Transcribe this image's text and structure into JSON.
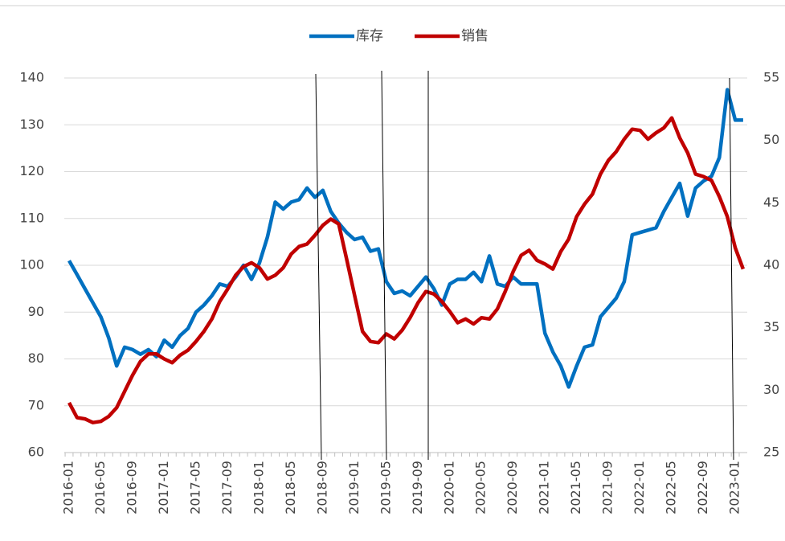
{
  "chart_data": {
    "type": "line",
    "categories": [
      "2016-01",
      null,
      null,
      null,
      "2016-05",
      null,
      null,
      null,
      "2016-09",
      null,
      null,
      null,
      "2017-01",
      null,
      null,
      null,
      "2017-05",
      null,
      null,
      null,
      "2017-09",
      null,
      null,
      null,
      "2018-01",
      null,
      null,
      null,
      "2018-05",
      null,
      null,
      null,
      "2018-09",
      null,
      null,
      null,
      "2019-01",
      null,
      null,
      null,
      "2019-05",
      null,
      null,
      null,
      "2019-09",
      null,
      null,
      null,
      "2020-01",
      null,
      null,
      null,
      "2020-05",
      null,
      null,
      null,
      "2020-09",
      null,
      null,
      null,
      "2021-01",
      null,
      null,
      null,
      "2021-05",
      null,
      null,
      null,
      "2021-09",
      null,
      null,
      null,
      "2022-01",
      null,
      null,
      null,
      "2022-05",
      null,
      null,
      null,
      "2022-09",
      null,
      null,
      null,
      "2023-01",
      null
    ],
    "series": [
      {
        "name": "库存",
        "color": "#0070c0",
        "axis": "y",
        "values": [
          101,
          98,
          95,
          92,
          89,
          84.5,
          78.5,
          82.5,
          82,
          81,
          82,
          80.5,
          84,
          82.5,
          85,
          86.5,
          90,
          91.5,
          93.5,
          96,
          95.5,
          97.5,
          100,
          97,
          100.5,
          106,
          113.5,
          112,
          113.5,
          114,
          116.5,
          114.5,
          116,
          111.5,
          109,
          107,
          105.5,
          106,
          103,
          103.5,
          96.5,
          94,
          94.5,
          93.5,
          95.5,
          97.5,
          95,
          91.5,
          96,
          97,
          97,
          98.5,
          96.5,
          102,
          96,
          95.5,
          97.5,
          96,
          96,
          96,
          85.5,
          81.5,
          78.5,
          74,
          78.5,
          82.5,
          83,
          89,
          91,
          93,
          96.5,
          106.5,
          107,
          107.5,
          108,
          111.5,
          114.5,
          117.5,
          110.5,
          116.5,
          118,
          119,
          123,
          137.5,
          131,
          131
        ]
      },
      {
        "name": "销售",
        "color": "#c00000",
        "axis": "y2",
        "values": [
          29,
          27.8,
          27.7,
          27.4,
          27.5,
          27.9,
          28.6,
          29.9,
          31.2,
          32.3,
          32.9,
          32.9,
          32.5,
          32.2,
          32.8,
          33.2,
          33.9,
          34.7,
          35.7,
          37.1,
          38.1,
          39.2,
          39.9,
          40.2,
          39.8,
          38.9,
          39.2,
          39.8,
          40.9,
          41.5,
          41.7,
          42.4,
          43.2,
          43.7,
          43.3,
          40.5,
          37.6,
          34.7,
          33.9,
          33.8,
          34.5,
          34.1,
          34.8,
          35.8,
          37,
          37.9,
          37.7,
          37.1,
          36.3,
          35.4,
          35.7,
          35.3,
          35.8,
          35.7,
          36.5,
          37.9,
          39.5,
          40.8,
          41.2,
          40.4,
          40.1,
          39.7,
          41.1,
          42.1,
          43.9,
          44.9,
          45.7,
          47.3,
          48.4,
          49.1,
          50.1,
          50.9,
          50.8,
          50.1,
          50.6,
          51,
          51.8,
          50.2,
          49,
          47.3,
          47.1,
          46.8,
          45.5,
          43.9,
          41.4,
          39.7
        ]
      }
    ],
    "ylim": [
      60,
      140
    ],
    "yticks": [
      60,
      70,
      80,
      90,
      100,
      110,
      120,
      130,
      140
    ],
    "y2lim": [
      25,
      55
    ],
    "y2ticks": [
      25,
      30,
      35,
      40,
      45,
      50,
      55
    ],
    "grid": true,
    "legend": "top"
  }
}
